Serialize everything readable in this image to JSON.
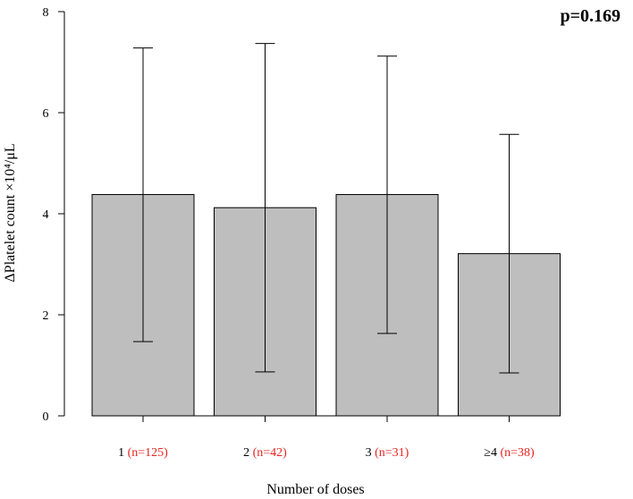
{
  "chart_data": {
    "type": "bar",
    "categories": [
      "1",
      "2",
      "3",
      "≥4"
    ],
    "n_labels": [
      "(n=125)",
      "(n=42)",
      "(n=31)",
      "(n=38)"
    ],
    "values": [
      4.38,
      4.12,
      4.38,
      3.21
    ],
    "error_low": [
      1.47,
      0.87,
      1.63,
      0.85
    ],
    "error_high": [
      7.28,
      7.37,
      7.12,
      5.57
    ],
    "ylim": [
      0,
      8
    ],
    "yticks": [
      0,
      2,
      4,
      6,
      8
    ],
    "xlabel": "Number of doses",
    "ylabel": "ΔPlatelet count ×10⁴/μL",
    "annotation": "p=0.169",
    "grid": false,
    "colors": {
      "bar_fill": "#bebebe",
      "bar_stroke": "#000000",
      "n_label": "#e8231f"
    }
  }
}
